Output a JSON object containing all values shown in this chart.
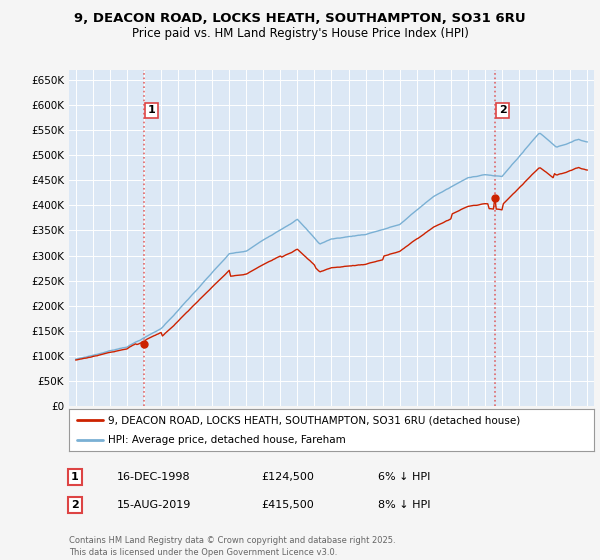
{
  "title1": "9, DEACON ROAD, LOCKS HEATH, SOUTHAMPTON, SO31 6RU",
  "title2": "Price paid vs. HM Land Registry's House Price Index (HPI)",
  "legend_label_red": "9, DEACON ROAD, LOCKS HEATH, SOUTHAMPTON, SO31 6RU (detached house)",
  "legend_label_blue": "HPI: Average price, detached house, Fareham",
  "ann1_num": "1",
  "ann1_date": "16-DEC-1998",
  "ann1_price": "£124,500",
  "ann1_note": "6% ↓ HPI",
  "ann2_num": "2",
  "ann2_date": "15-AUG-2019",
  "ann2_price": "£415,500",
  "ann2_note": "8% ↓ HPI",
  "footer": "Contains HM Land Registry data © Crown copyright and database right 2025.\nThis data is licensed under the Open Government Licence v3.0.",
  "purchase1_year": 1999.0,
  "purchase1_price": 124500,
  "purchase2_year": 2019.62,
  "purchase2_price": 415500,
  "fig_bg": "#f5f5f5",
  "plot_bg": "#dce8f5",
  "red_color": "#cc2200",
  "blue_color": "#7ab0d4",
  "grid_color": "#ffffff",
  "vline_color": "#dd4444",
  "marker_color": "#cc2200",
  "ylim": [
    0,
    670000
  ],
  "xlim_start": 1994.6,
  "xlim_end": 2025.4,
  "yticks": [
    0,
    50000,
    100000,
    150000,
    200000,
    250000,
    300000,
    350000,
    400000,
    450000,
    500000,
    550000,
    600000,
    650000
  ],
  "ytick_labels": [
    "£0",
    "£50K",
    "£100K",
    "£150K",
    "£200K",
    "£250K",
    "£300K",
    "£350K",
    "£400K",
    "£450K",
    "£500K",
    "£550K",
    "£600K",
    "£650K"
  ],
  "xticks": [
    1995,
    1996,
    1997,
    1998,
    1999,
    2000,
    2001,
    2002,
    2003,
    2004,
    2005,
    2006,
    2007,
    2008,
    2009,
    2010,
    2011,
    2012,
    2013,
    2014,
    2015,
    2016,
    2017,
    2018,
    2019,
    2020,
    2021,
    2022,
    2023,
    2024,
    2025
  ]
}
